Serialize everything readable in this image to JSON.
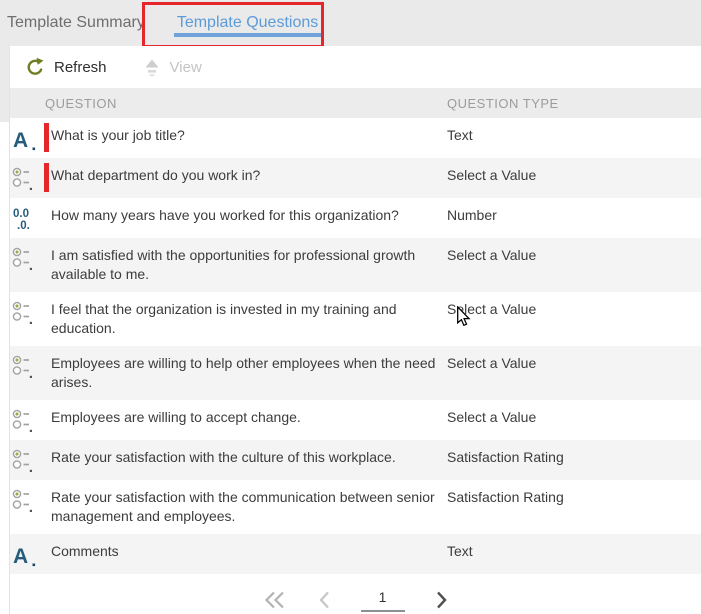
{
  "tabs": {
    "summary": "Template Summary",
    "questions": "Template Questions"
  },
  "toolbar": {
    "refresh": "Refresh",
    "view": "View"
  },
  "table": {
    "header": {
      "question": "QUESTION",
      "type": "QUESTION TYPE"
    },
    "rows": [
      {
        "icon": "text-question-icon",
        "question": "What is your job title?",
        "type": "Text",
        "marked": true
      },
      {
        "icon": "select-value-icon",
        "question": "What department do you work in?",
        "type": "Select a Value",
        "marked": true
      },
      {
        "icon": "number-question-icon",
        "question": "How many years have you worked for this organization?",
        "type": "Number",
        "marked": false
      },
      {
        "icon": "select-value-icon",
        "question": "I am satisfied with the opportunities for professional growth available to me.",
        "type": "Select a Value",
        "marked": false
      },
      {
        "icon": "select-value-icon",
        "question": "I feel that the organization is invested in my training and education.",
        "type": "Select a Value",
        "marked": false
      },
      {
        "icon": "select-value-icon",
        "question": "Employees are willing to help other employees when the need arises.",
        "type": "Select a Value",
        "marked": false
      },
      {
        "icon": "select-value-icon",
        "question": "Employees are willing to accept change.",
        "type": "Select a Value",
        "marked": false
      },
      {
        "icon": "select-value-icon",
        "question": "Rate your satisfaction with the culture of this workplace.",
        "type": "Satisfaction Rating",
        "marked": false
      },
      {
        "icon": "select-value-icon",
        "question": "Rate your satisfaction with the communication between senior management and employees.",
        "type": "Satisfaction Rating",
        "marked": false
      },
      {
        "icon": "text-question-icon",
        "question": "Comments",
        "type": "Text",
        "marked": false
      }
    ]
  },
  "pagination": {
    "page": "1"
  },
  "colors": {
    "active_tab_blue": "#5b9bd8",
    "tab_underline_blue": "#6fa3da",
    "annotation_red": "#e5262b",
    "icon_dark_blue": "#265d7d",
    "refresh_olive": "#6e7d21",
    "row_alt_gray": "#f4f4f4",
    "header_gray": "#ececec",
    "tabbar_gray": "#eaeaea"
  }
}
